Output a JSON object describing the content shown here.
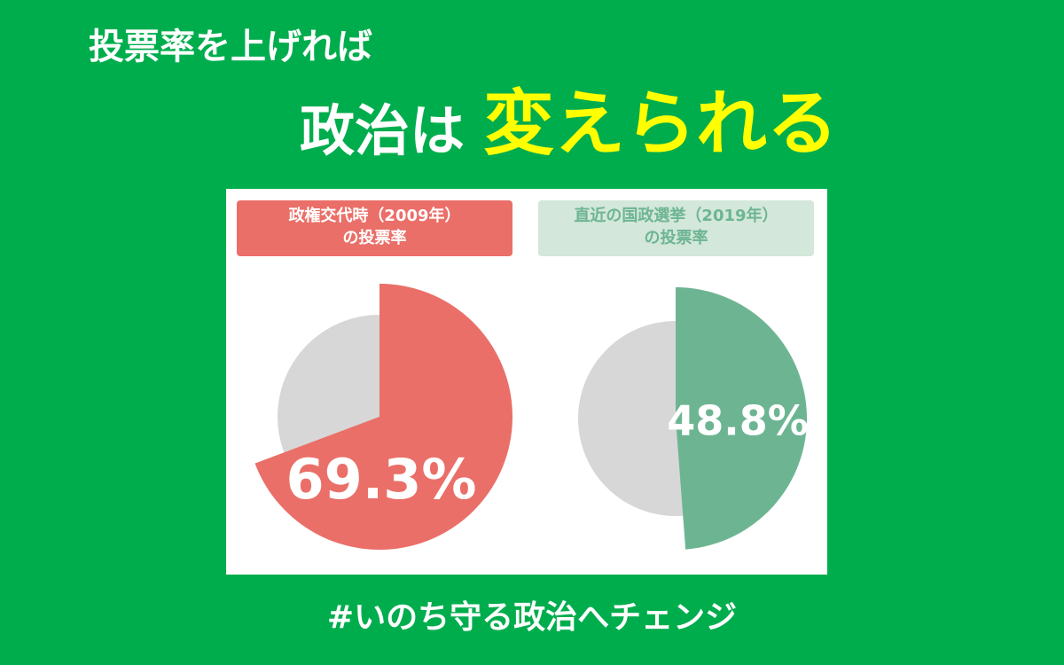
{
  "header": {
    "line1": "投票率を上げれば",
    "line2a": "政治は",
    "line2b": "変えられる"
  },
  "chart_data": [
    {
      "type": "pie",
      "title": [
        "政権交代時（2009年）",
        "の投票率"
      ],
      "values": [
        69.3
      ],
      "value_labels": [
        "69.3%"
      ],
      "color": "#ea6f68",
      "rest_color": "#d7d7d7",
      "title_bg": "#ea6f68",
      "title_color": "#ffffff"
    },
    {
      "type": "pie",
      "title": [
        "直近の国政選挙（2019年）",
        "の投票率"
      ],
      "values": [
        48.8
      ],
      "value_labels": [
        "48.8%"
      ],
      "color": "#6db592",
      "rest_color": "#d7d7d7",
      "title_bg": "#d3e7da",
      "title_color": "#6db592"
    }
  ],
  "footer": "#いのち守る政治へチェンジ"
}
